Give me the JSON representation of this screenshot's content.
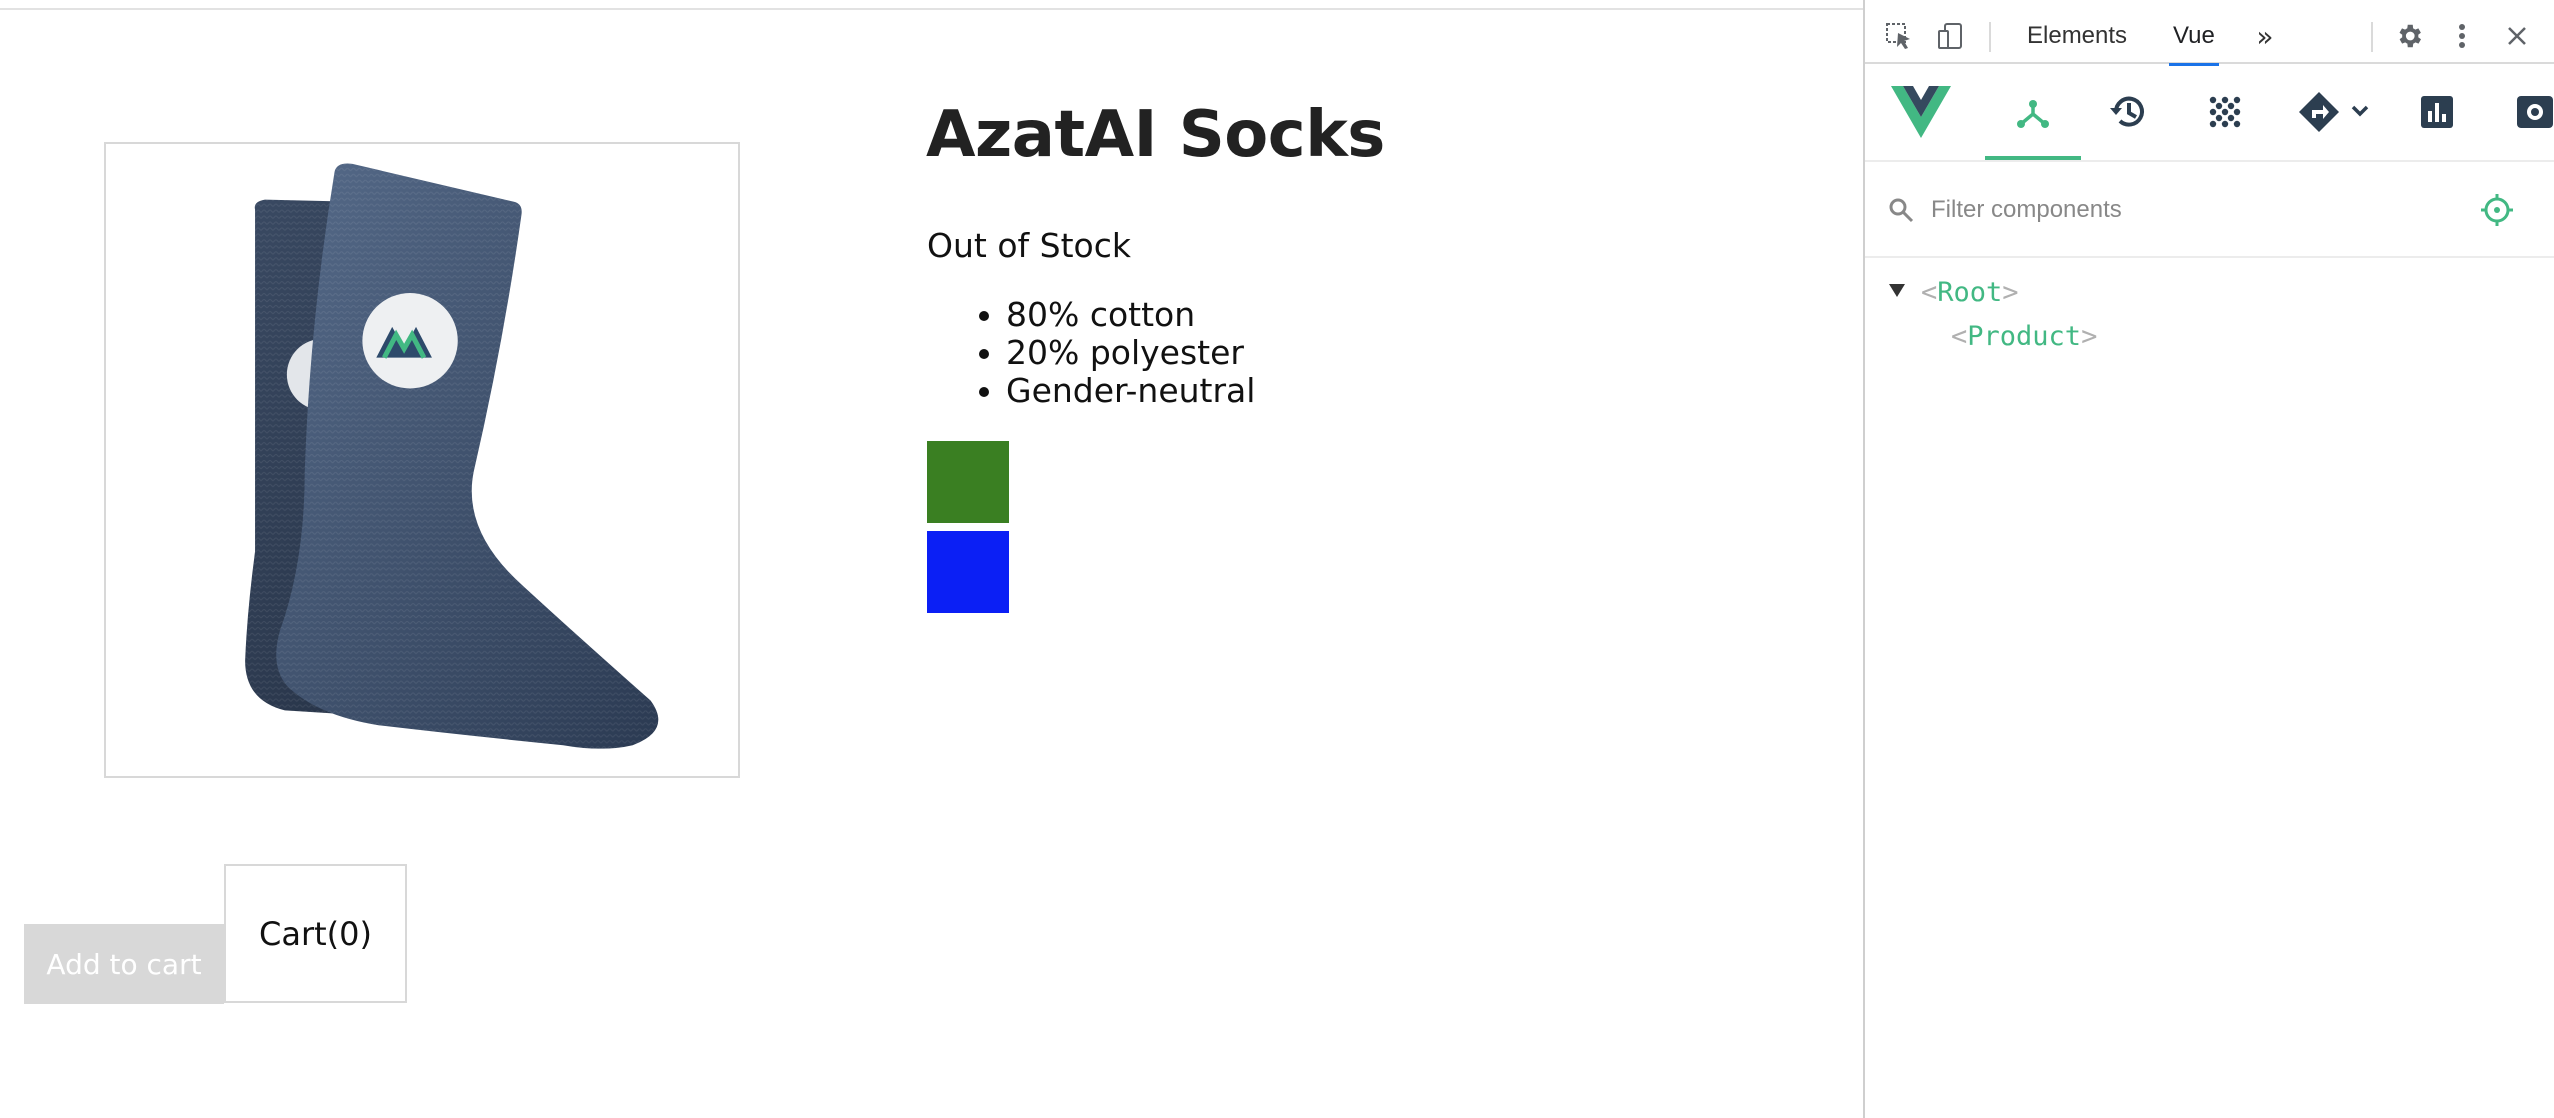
{
  "product": {
    "title": "AzatAI Socks",
    "stock_status": "Out of Stock",
    "details": [
      "80% cotton",
      "20% polyester",
      "Gender-neutral"
    ],
    "variants": [
      {
        "color": "#3a7f22"
      },
      {
        "color": "#0b1ff5"
      }
    ],
    "add_to_cart_label": "Add to cart",
    "cart_label": "Cart(0)",
    "image_icon": "sock-image"
  },
  "devtools": {
    "tabs": [
      {
        "label": "Elements",
        "active": false
      },
      {
        "label": "Vue",
        "active": true
      }
    ],
    "more_tabs_icon": "chevron-double-right-icon",
    "vue_toolbar": [
      "vue-logo-icon",
      "components-icon",
      "timeline-icon",
      "vuex-icon",
      "routing-icon",
      "performance-icon",
      "settings-icon"
    ],
    "filter_placeholder": "Filter components",
    "tree": [
      {
        "name": "Root",
        "open_bracket": "<",
        "close_bracket": ">"
      },
      {
        "name": "Product",
        "open_bracket": "<",
        "close_bracket": ">"
      }
    ],
    "accent": "#42b883"
  }
}
